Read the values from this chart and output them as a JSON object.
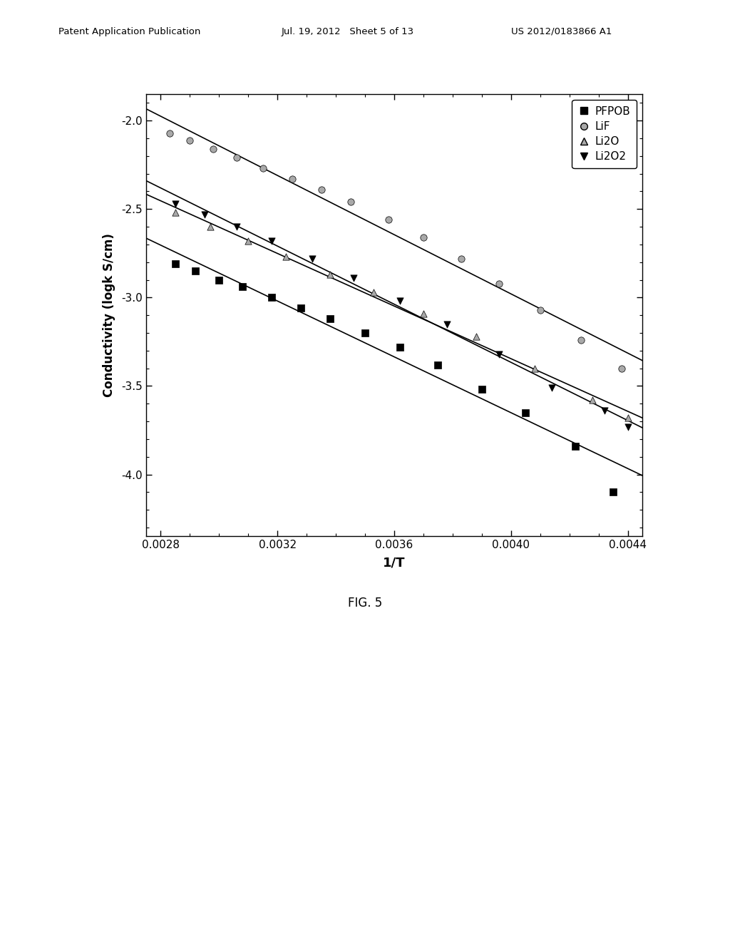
{
  "title": "",
  "xlabel": "1/T",
  "ylabel": "Conductivity (logk S/cm)",
  "xlim": [
    0.00275,
    0.00445
  ],
  "ylim": [
    -4.35,
    -1.85
  ],
  "xticks": [
    0.0028,
    0.0032,
    0.0036,
    0.004,
    0.0044
  ],
  "yticks": [
    -4.0,
    -3.5,
    -3.0,
    -2.5,
    -2.0
  ],
  "series": {
    "PFPOB": {
      "x": [
        0.00285,
        0.00292,
        0.003,
        0.00308,
        0.00318,
        0.00328,
        0.00338,
        0.0035,
        0.00362,
        0.00375,
        0.0039,
        0.00405,
        0.00422,
        0.00435
      ],
      "y": [
        -2.81,
        -2.85,
        -2.9,
        -2.94,
        -3.0,
        -3.06,
        -3.12,
        -3.2,
        -3.28,
        -3.38,
        -3.52,
        -3.65,
        -3.84,
        -4.1
      ],
      "marker": "s",
      "facecolor": "black",
      "edgecolor": "black"
    },
    "LiF": {
      "x": [
        0.00283,
        0.0029,
        0.00298,
        0.00306,
        0.00315,
        0.00325,
        0.00335,
        0.00345,
        0.00358,
        0.0037,
        0.00383,
        0.00396,
        0.0041,
        0.00424,
        0.00438
      ],
      "y": [
        -2.07,
        -2.11,
        -2.16,
        -2.21,
        -2.27,
        -2.33,
        -2.39,
        -2.46,
        -2.56,
        -2.66,
        -2.78,
        -2.92,
        -3.07,
        -3.24,
        -3.4
      ],
      "marker": "o",
      "facecolor": "darkgray",
      "edgecolor": "black"
    },
    "Li2O": {
      "x": [
        0.00285,
        0.00297,
        0.0031,
        0.00323,
        0.00338,
        0.00353,
        0.0037,
        0.00388,
        0.00408,
        0.00428,
        0.0044
      ],
      "y": [
        -2.52,
        -2.6,
        -2.68,
        -2.77,
        -2.87,
        -2.97,
        -3.09,
        -3.22,
        -3.4,
        -3.58,
        -3.68
      ],
      "marker": "^",
      "facecolor": "darkgray",
      "edgecolor": "black"
    },
    "Li2O2": {
      "x": [
        0.00285,
        0.00295,
        0.00306,
        0.00318,
        0.00332,
        0.00346,
        0.00362,
        0.00378,
        0.00396,
        0.00414,
        0.00432,
        0.0044
      ],
      "y": [
        -2.47,
        -2.53,
        -2.6,
        -2.68,
        -2.78,
        -2.89,
        -3.02,
        -3.15,
        -3.32,
        -3.51,
        -3.64,
        -3.73
      ],
      "marker": "v",
      "facecolor": "black",
      "edgecolor": "black"
    }
  },
  "background_color": "#ffffff",
  "fig_caption": "FIG. 5",
  "header_left": "Patent Application Publication",
  "header_center": "Jul. 19, 2012   Sheet 5 of 13",
  "header_right": "US 2012/0183866 A1"
}
